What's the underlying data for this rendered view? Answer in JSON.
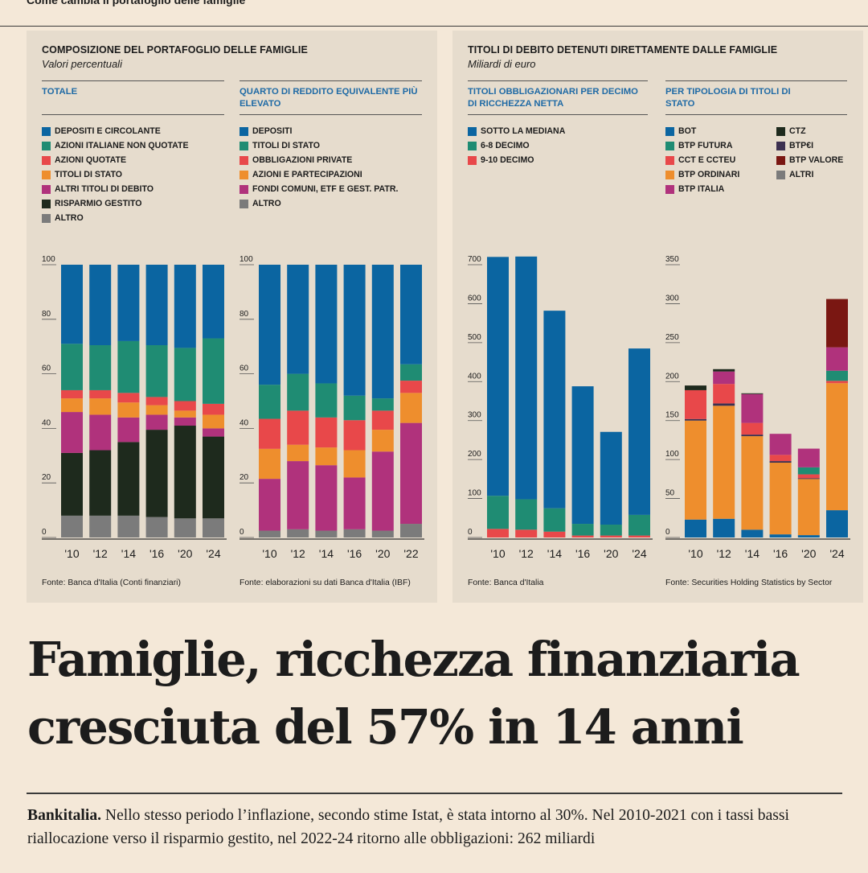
{
  "kicker": "Come cambia il portafoglio delle famiglie",
  "panels": [
    {
      "title": "COMPOSIZIONE DEL PORTAFOGLIO DELLE FAMIGLIE",
      "subtitle": "Valori percentuali"
    },
    {
      "title": "TITOLI DI DEBITO DETENUTI DIRETTAMENTE DALLE FAMIGLIE",
      "subtitle": "Miliardi di euro"
    }
  ],
  "headline": [
    "Famiglie, ricchezza finanziaria",
    "cresciuta del 57% in 14 anni"
  ],
  "body": {
    "lead": "Bankitalia.",
    "text": " Nello stesso periodo l’inflazione, secondo stime Istat, è stata intorno al 30%. Nel 2010-2021 con i tassi bassi riallocazione verso il risparmio gestito, nel 2022-24 ritorno alle obbligazioni: 262 miliardi"
  },
  "colors": {
    "blue": "#0b65a1",
    "teal": "#1f8c73",
    "red": "#e8484a",
    "orange": "#ee8e2d",
    "magenta": "#b0327c",
    "darkgreen": "#1e2a1d",
    "grey": "#7b7b7b",
    "navy": "#3c3050",
    "maroon": "#7a1712"
  },
  "chart_data": [
    {
      "id": "chart1",
      "type": "bar",
      "stacked": true,
      "subheading": "TOTALE",
      "source": "Fonte: Banca d'Italia (Conti finanziari)",
      "categories": [
        "'10",
        "'12",
        "'14",
        "'16",
        "'20",
        "'24"
      ],
      "ylim": [
        0,
        100
      ],
      "yticks": [
        0,
        20,
        40,
        60,
        80,
        100
      ],
      "series": [
        {
          "name": "ALTRO",
          "color": "#7b7b7b",
          "values": [
            8,
            8,
            8,
            7.5,
            7,
            7
          ]
        },
        {
          "name": "RISPARMIO GESTITO",
          "color": "#1e2a1d",
          "values": [
            23,
            24,
            27,
            32,
            34,
            30
          ]
        },
        {
          "name": "ALTRI TITOLI DI DEBITO",
          "color": "#b0327c",
          "values": [
            15,
            13,
            9,
            5.5,
            3,
            3
          ]
        },
        {
          "name": "TITOLI DI STATO",
          "color": "#ee8e2d",
          "values": [
            5,
            6,
            5.5,
            3.5,
            2.5,
            5
          ]
        },
        {
          "name": "AZIONI QUOTATE",
          "color": "#e8484a",
          "values": [
            3,
            3,
            3.5,
            3,
            3.5,
            4
          ]
        },
        {
          "name": "AZIONI ITALIANE NON QUOTATE",
          "color": "#1f8c73",
          "values": [
            17,
            16.5,
            19,
            19,
            19.5,
            24
          ]
        },
        {
          "name": "DEPOSITI E CIRCOLANTE",
          "color": "#0b65a1",
          "values": [
            29,
            29.5,
            28,
            29.5,
            30.5,
            27
          ]
        }
      ]
    },
    {
      "id": "chart2",
      "type": "bar",
      "stacked": true,
      "subheading": "QUARTO DI REDDITO EQUIVALENTE PIÙ ELEVATO",
      "source": "Fonte: elaborazioni su dati Banca d'Italia (IBF)",
      "categories": [
        "'10",
        "'12",
        "'14",
        "'16",
        "'20",
        "'22"
      ],
      "ylim": [
        0,
        100
      ],
      "yticks": [
        0,
        20,
        40,
        60,
        80,
        100
      ],
      "series": [
        {
          "name": "ALTRO",
          "color": "#7b7b7b",
          "values": [
            2.5,
            3,
            2.5,
            3,
            2.5,
            5
          ]
        },
        {
          "name": "FONDI COMUNI, ETF E GEST. PATR.",
          "color": "#b0327c",
          "values": [
            19,
            25,
            24,
            19,
            29,
            37
          ]
        },
        {
          "name": "AZIONI E PARTECIPAZIONI",
          "color": "#ee8e2d",
          "values": [
            11,
            6,
            6.5,
            10,
            8,
            11
          ]
        },
        {
          "name": "OBBLIGAZIONI PRIVATE",
          "color": "#e8484a",
          "values": [
            11,
            12.5,
            11,
            11,
            7,
            4.5
          ]
        },
        {
          "name": "TITOLI DI STATO",
          "color": "#1f8c73",
          "values": [
            12.5,
            13.5,
            12.5,
            9,
            4.5,
            6
          ]
        },
        {
          "name": "DEPOSITI",
          "color": "#0b65a1",
          "values": [
            44,
            40,
            43.5,
            48,
            49,
            36.5
          ]
        }
      ]
    },
    {
      "id": "chart3",
      "type": "bar",
      "stacked": true,
      "subheading": "TITOLI OBBLIGAZIONARI PER DECIMO DI RICCHEZZA NETTA",
      "source": "Fonte: Banca d'Italia",
      "categories": [
        "'10",
        "'12",
        "'14",
        "'16",
        "'20",
        "'24"
      ],
      "ylim": [
        0,
        700
      ],
      "yticks": [
        0,
        100,
        200,
        300,
        400,
        500,
        600,
        700
      ],
      "series": [
        {
          "name": "9-10 DECIMO",
          "color": "#e8484a",
          "values": [
            22,
            20,
            15,
            5,
            5,
            5
          ]
        },
        {
          "name": "6-8 DECIMO",
          "color": "#1f8c73",
          "values": [
            85,
            78,
            60,
            30,
            28,
            53
          ]
        },
        {
          "name": "SOTTO LA MEDIANA",
          "color": "#0b65a1",
          "values": [
            613,
            623,
            507,
            353,
            238,
            427
          ]
        }
      ]
    },
    {
      "id": "chart4",
      "type": "bar",
      "stacked": true,
      "subheading": "PER TIPOLOGIA DI TITOLI DI STATO",
      "source": "Fonte: Securities Holding Statistics by Sector",
      "categories": [
        "'10",
        "'12",
        "'14",
        "'16",
        "'20",
        "'24"
      ],
      "ylim": [
        0,
        350
      ],
      "yticks": [
        0,
        50,
        100,
        150,
        200,
        250,
        300,
        350
      ],
      "series": [
        {
          "name": "BOT",
          "color": "#0b65a1",
          "values": [
            23,
            24,
            10,
            4,
            3,
            35
          ]
        },
        {
          "name": "BTP ORDINARI",
          "color": "#ee8e2d",
          "values": [
            127,
            145,
            120,
            92,
            72,
            163
          ]
        },
        {
          "name": "BTP€I",
          "color": "#3c3050",
          "values": [
            2,
            3,
            2,
            2,
            1,
            0
          ]
        },
        {
          "name": "CCT E CCTEU",
          "color": "#e8484a",
          "values": [
            37,
            25,
            15,
            8,
            5,
            3
          ]
        },
        {
          "name": "BTP FUTURA",
          "color": "#1f8c73",
          "values": [
            0,
            0,
            0,
            0,
            9,
            13
          ]
        },
        {
          "name": "BTP ITALIA",
          "color": "#b0327c",
          "values": [
            0,
            16,
            37,
            27,
            24,
            30
          ]
        },
        {
          "name": "CTZ",
          "color": "#1e2a1d",
          "values": [
            6,
            3,
            1,
            0,
            0,
            0
          ]
        },
        {
          "name": "BTP VALORE",
          "color": "#7a1712",
          "values": [
            0,
            0,
            0,
            0,
            0,
            62
          ]
        },
        {
          "name": "ALTRI",
          "color": "#7b7b7b",
          "values": [
            0,
            0,
            0,
            0,
            0,
            0
          ]
        }
      ]
    }
  ],
  "legends": {
    "chart1": [
      {
        "label": "DEPOSITI E CIRCOLANTE",
        "color": "#0b65a1"
      },
      {
        "label": "AZIONI ITALIANE NON QUOTATE",
        "color": "#1f8c73"
      },
      {
        "label": "AZIONI QUOTATE",
        "color": "#e8484a"
      },
      {
        "label": "TITOLI DI STATO",
        "color": "#ee8e2d"
      },
      {
        "label": "ALTRI TITOLI DI DEBITO",
        "color": "#b0327c"
      },
      {
        "label": "RISPARMIO GESTITO",
        "color": "#1e2a1d"
      },
      {
        "label": "ALTRO",
        "color": "#7b7b7b"
      }
    ],
    "chart2": [
      {
        "label": "DEPOSITI",
        "color": "#0b65a1"
      },
      {
        "label": "TITOLI DI STATO",
        "color": "#1f8c73"
      },
      {
        "label": "OBBLIGAZIONI PRIVATE",
        "color": "#e8484a"
      },
      {
        "label": "AZIONI E PARTECIPAZIONI",
        "color": "#ee8e2d"
      },
      {
        "label": "FONDI COMUNI, ETF E GEST. PATR.",
        "color": "#b0327c"
      },
      {
        "label": "ALTRO",
        "color": "#7b7b7b"
      }
    ],
    "chart3": [
      {
        "label": "SOTTO LA MEDIANA",
        "color": "#0b65a1"
      },
      {
        "label": "6-8 DECIMO",
        "color": "#1f8c73"
      },
      {
        "label": "9-10 DECIMO",
        "color": "#e8484a"
      }
    ],
    "chart4a": [
      {
        "label": "BOT",
        "color": "#0b65a1"
      },
      {
        "label": "BTP FUTURA",
        "color": "#1f8c73"
      },
      {
        "label": "CCT E CCTEU",
        "color": "#e8484a"
      },
      {
        "label": "BTP ORDINARI",
        "color": "#ee8e2d"
      },
      {
        "label": "BTP ITALIA",
        "color": "#b0327c"
      }
    ],
    "chart4b": [
      {
        "label": "CTZ",
        "color": "#1e2a1d"
      },
      {
        "label": "BTP€I",
        "color": "#3c3050"
      },
      {
        "label": "BTP VALORE",
        "color": "#7a1712"
      },
      {
        "label": "ALTRI",
        "color": "#7b7b7b"
      }
    ]
  }
}
